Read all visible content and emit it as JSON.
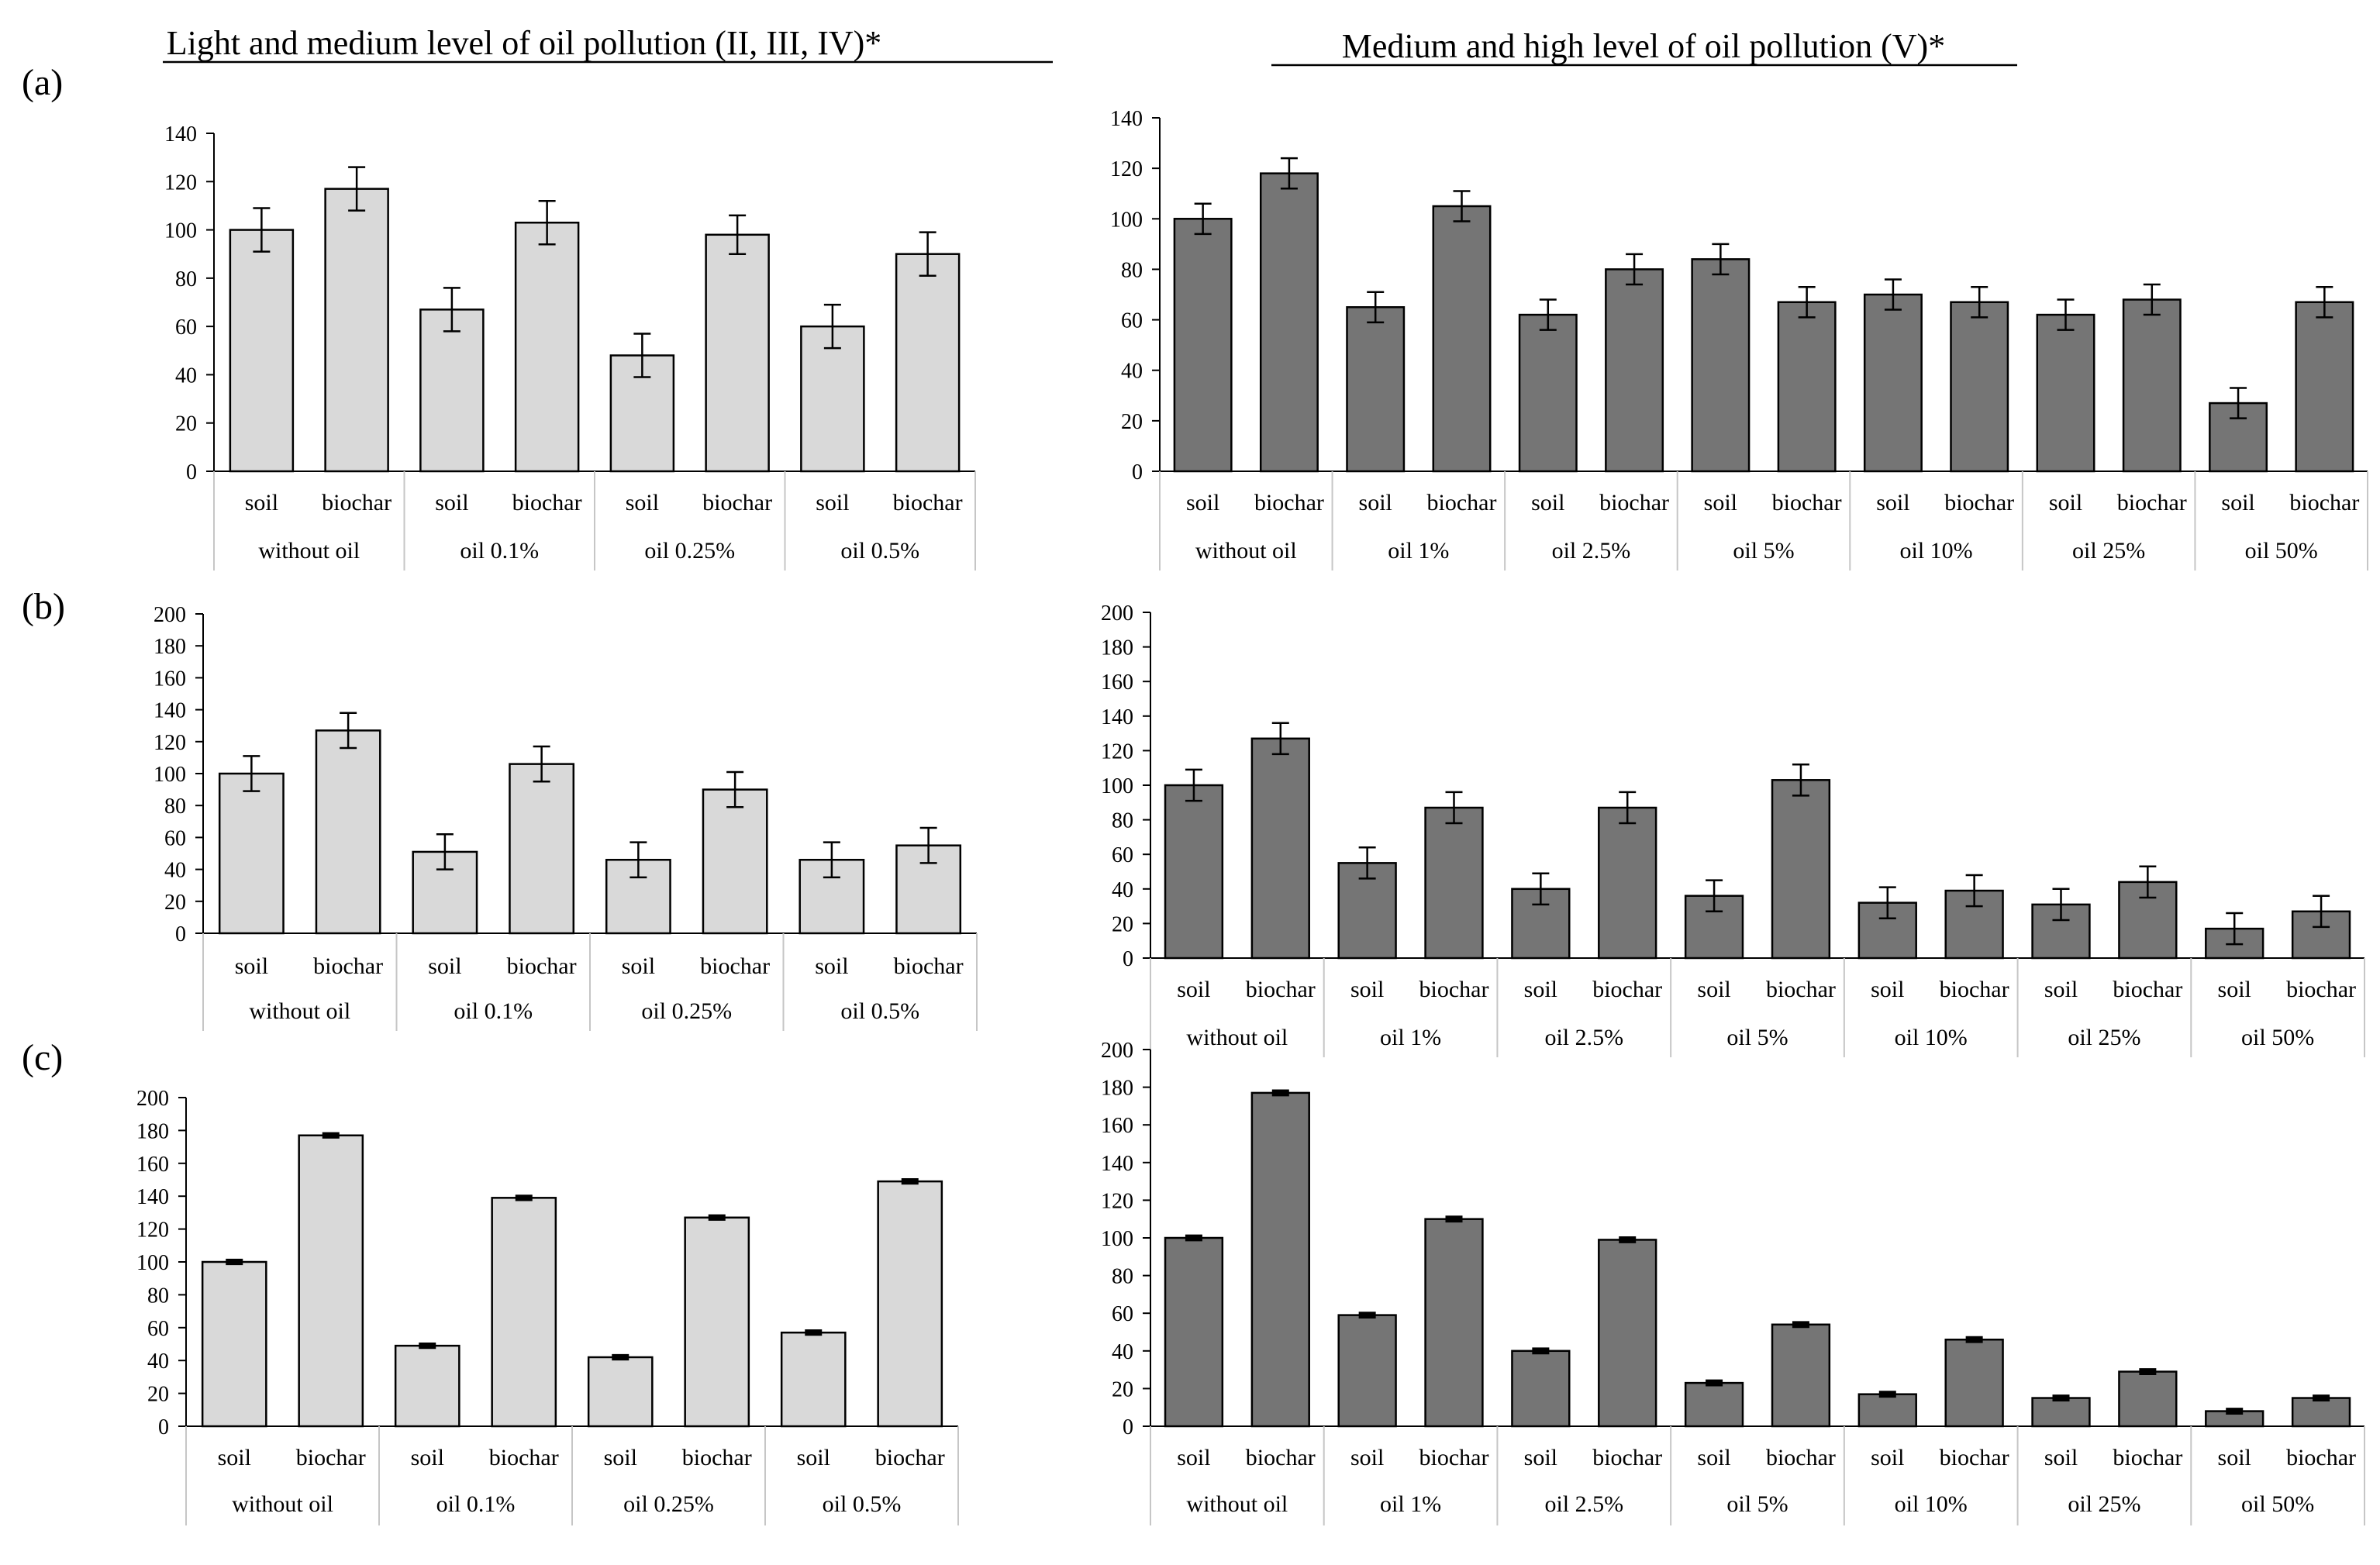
{
  "figure": {
    "header_left": "Light and medium level of oil pollution (II, III, IV)*",
    "header_right": "Medium and high level of oil pollution (V)*",
    "row_labels": [
      "(a)",
      "(b)",
      "(c)"
    ]
  },
  "colors": {
    "light_bar": "#d9d9d9",
    "dark_bar": "#757575",
    "axis": "#000000",
    "grid_lines": "#c6c6c6"
  },
  "chart_data": [
    {
      "id": "a-left",
      "type": "bar",
      "row": "(a)",
      "panel": "left",
      "yticks": [
        "0",
        "20",
        "40",
        "60",
        "80",
        "100",
        "120",
        "140"
      ],
      "ylim": [
        0,
        140
      ],
      "categories": [
        "soil",
        "biochar",
        "soil",
        "biochar",
        "soil",
        "biochar",
        "soil",
        "biochar"
      ],
      "groups": [
        "without oil",
        "oil 0.1%",
        "oil 0.25%",
        "oil  0.5%"
      ],
      "values": [
        100,
        117,
        67,
        103,
        48,
        98,
        60,
        90
      ],
      "errors": [
        9,
        9,
        9,
        9,
        9,
        8,
        9,
        9
      ]
    },
    {
      "id": "a-right",
      "type": "bar",
      "row": "(a)",
      "panel": "right",
      "yticks": [
        "0",
        "20",
        "40",
        "60",
        "80",
        "100",
        "120",
        "140"
      ],
      "ylim": [
        0,
        140
      ],
      "categories": [
        "soil",
        "biochar",
        "soil",
        "biochar",
        "soil",
        "biochar",
        "soil",
        "biochar",
        "soil",
        "biochar",
        "soil",
        "biochar",
        "soil",
        "biochar"
      ],
      "groups": [
        "without oil",
        "oil  1%",
        "oil  2.5%",
        "oil 5%",
        "oil  10%",
        "oil  25%",
        "oil  50%"
      ],
      "values": [
        100,
        118,
        65,
        105,
        62,
        80,
        84,
        67,
        70,
        67,
        62,
        68,
        27,
        67
      ],
      "errors": [
        6,
        6,
        6,
        6,
        6,
        6,
        6,
        6,
        6,
        6,
        6,
        6,
        6,
        6
      ]
    },
    {
      "id": "b-left",
      "type": "bar",
      "row": "(b)",
      "panel": "left",
      "yticks": [
        "0",
        "20",
        "40",
        "60",
        "80",
        "100",
        "120",
        "140",
        "160",
        "180",
        "200"
      ],
      "ylim": [
        0,
        200
      ],
      "categories": [
        "soil",
        "biochar",
        "soil",
        "biochar",
        "soil",
        "biochar",
        "soil",
        "biochar"
      ],
      "groups": [
        "without oil",
        "oil  0.1%",
        "oil 0.25%",
        "oil  0.5%"
      ],
      "values": [
        100,
        127,
        51,
        106,
        46,
        90,
        46,
        55
      ],
      "errors": [
        11,
        11,
        11,
        11,
        11,
        11,
        11,
        11
      ]
    },
    {
      "id": "b-right",
      "type": "bar",
      "row": "(b)",
      "panel": "right",
      "yticks": [
        "0",
        "20",
        "40",
        "60",
        "80",
        "100",
        "120",
        "140",
        "160",
        "180",
        "200"
      ],
      "ylim": [
        0,
        200
      ],
      "categories": [
        "soil",
        "biochar",
        "soil",
        "biochar",
        "soil",
        "biochar",
        "soil",
        "biochar",
        "soil",
        "biochar",
        "soil",
        "biochar",
        "soil",
        "biochar"
      ],
      "groups": [
        "without oil",
        "oil  1%",
        "oil  2.5%",
        "oil 5%",
        "oil  10%",
        "oil  25%",
        "oil  50%"
      ],
      "values": [
        100,
        127,
        55,
        87,
        40,
        87,
        36,
        103,
        32,
        39,
        31,
        44,
        17,
        27
      ],
      "errors": [
        9,
        9,
        9,
        9,
        9,
        9,
        9,
        9,
        9,
        9,
        9,
        9,
        9,
        9
      ]
    },
    {
      "id": "c-left",
      "type": "bar",
      "row": "(c)",
      "panel": "left",
      "yticks": [
        "0",
        "20",
        "40",
        "60",
        "80",
        "100",
        "120",
        "140",
        "160",
        "180",
        "200"
      ],
      "ylim": [
        0,
        200
      ],
      "categories": [
        "soil",
        "biochar",
        "soil",
        "biochar",
        "soil",
        "biochar",
        "soil",
        "biochar"
      ],
      "groups": [
        "without oil",
        "oil  0.1%",
        "oil 0.25%",
        "oil  0.5%"
      ],
      "values": [
        100,
        177,
        49,
        139,
        42,
        127,
        57,
        149
      ],
      "errors": [
        1,
        1,
        1,
        1,
        1,
        1,
        1,
        1
      ]
    },
    {
      "id": "c-right",
      "type": "bar",
      "row": "(c)",
      "panel": "right",
      "yticks": [
        "0",
        "20",
        "40",
        "60",
        "80",
        "100",
        "120",
        "140",
        "160",
        "180",
        "200"
      ],
      "ylim": [
        0,
        200
      ],
      "categories": [
        "soil",
        "biochar",
        "soil",
        "biochar",
        "soil",
        "biochar",
        "soil",
        "biochar",
        "soil",
        "biochar",
        "soil",
        "biochar",
        "soil",
        "biochar"
      ],
      "groups": [
        "without oil",
        "oil  1%",
        "oil  2.5%",
        "oil 5%",
        "oil  10%",
        "oil  25%",
        "oil  50%"
      ],
      "values": [
        100,
        177,
        59,
        110,
        40,
        99,
        23,
        54,
        17,
        46,
        15,
        29,
        8,
        15
      ],
      "errors": [
        1,
        1,
        1,
        1,
        1,
        1,
        1,
        1,
        1,
        1,
        1,
        1,
        1,
        1
      ]
    }
  ]
}
